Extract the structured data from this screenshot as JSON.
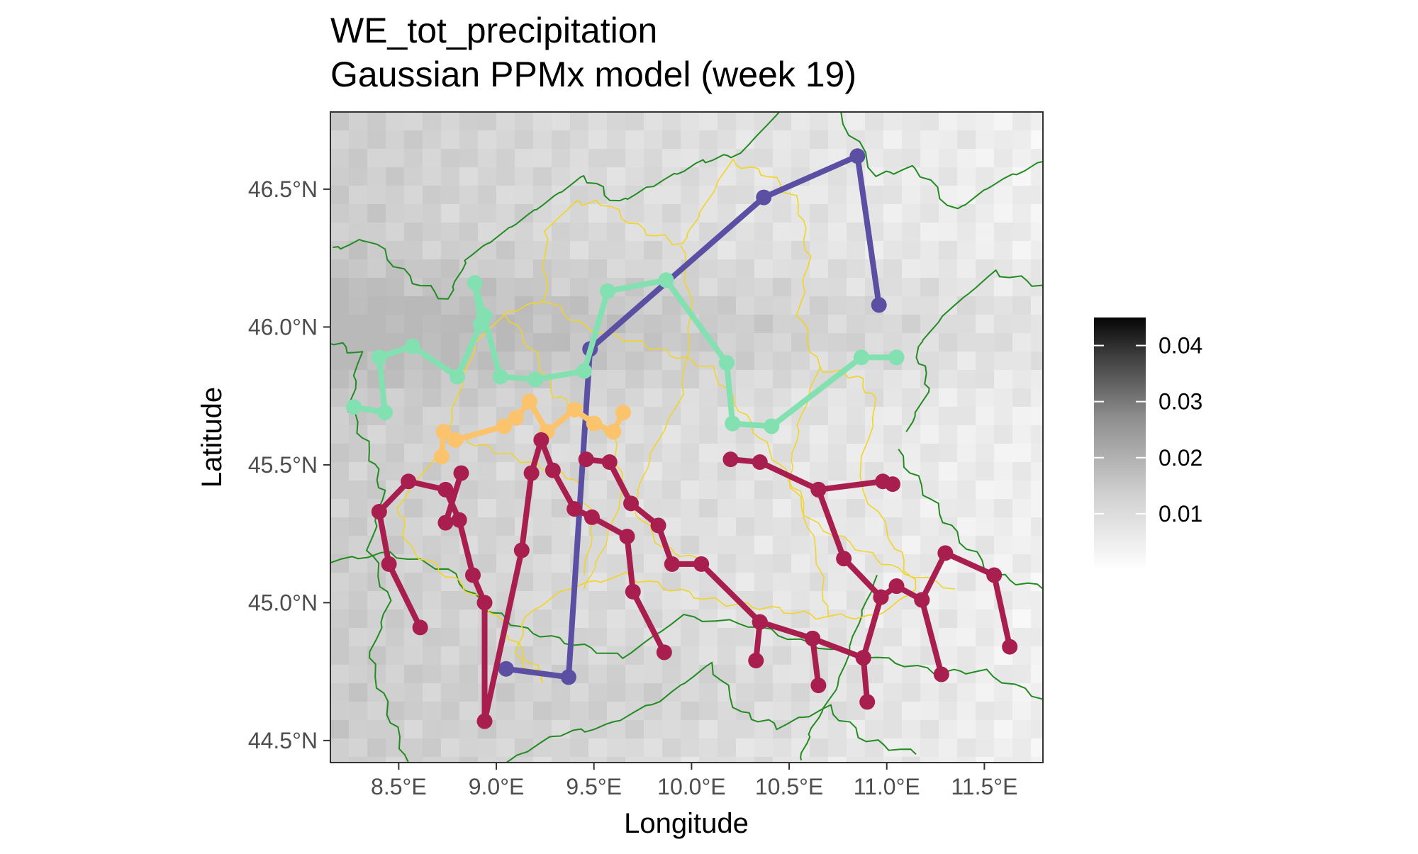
{
  "title": "WE_tot_precipitation",
  "subtitle": "Gaussian PPMx model (week 19)",
  "xlabel": "Longitude",
  "ylabel": "Latitude",
  "colors": {
    "background_gradient_low": "#ffffff",
    "background_gradient_high": "#000000",
    "border_green": "#228B22",
    "border_yellow": "#F2D422",
    "cluster_purple": "#5A4FA3",
    "cluster_mint": "#83E0B0",
    "cluster_orange": "#FBC36B",
    "cluster_crimson": "#A81E4E"
  },
  "chart_data": {
    "type": "map",
    "xlim": [
      8.15,
      11.8
    ],
    "ylim": [
      44.42,
      46.78
    ],
    "x_ticks": [
      8.5,
      9.0,
      9.5,
      10.0,
      10.5,
      11.0,
      11.5
    ],
    "x_tick_labels": [
      "8.5°E",
      "9.0°E",
      "9.5°E",
      "10.0°E",
      "10.5°E",
      "11.0°E",
      "11.5°E"
    ],
    "y_ticks": [
      44.5,
      45.0,
      45.5,
      46.0,
      46.5
    ],
    "y_tick_labels": [
      "44.5°N",
      "45.0°N",
      "45.5°N",
      "46.0°N",
      "46.5°N"
    ],
    "grid": false,
    "legend": {
      "position": "right",
      "type": "continuous",
      "range": [
        0,
        0.045
      ],
      "ticks": [
        0.01,
        0.02,
        0.03,
        0.04
      ],
      "tick_labels": [
        "0.01",
        "0.02",
        "0.03",
        "0.04"
      ]
    },
    "background_field": {
      "description": "gridded heatmap, values ~0.003-0.02",
      "darker_band_lat": [
        45.75,
        46.2
      ],
      "darker_band_lon": [
        8.15,
        11.0
      ]
    },
    "clusters": [
      {
        "color_key": "cluster_purple",
        "points": [
          [
            9.05,
            44.76
          ],
          [
            9.37,
            44.73
          ],
          [
            9.48,
            45.92
          ],
          [
            10.37,
            46.47
          ],
          [
            10.85,
            46.62
          ],
          [
            10.96,
            46.08
          ]
        ]
      },
      {
        "color_key": "cluster_mint",
        "points": [
          [
            8.27,
            45.71
          ],
          [
            8.43,
            45.69
          ],
          [
            8.4,
            45.89
          ],
          [
            8.57,
            45.93
          ],
          [
            8.8,
            45.82
          ],
          [
            8.92,
            46.01
          ],
          [
            8.89,
            46.16
          ],
          [
            9.02,
            45.82
          ],
          [
            9.2,
            45.81
          ],
          [
            9.45,
            45.84
          ],
          [
            9.57,
            46.13
          ],
          [
            9.87,
            46.17
          ],
          [
            10.18,
            45.87
          ],
          [
            10.21,
            45.65
          ],
          [
            10.41,
            45.64
          ],
          [
            10.87,
            45.89
          ],
          [
            11.05,
            45.89
          ]
        ]
      },
      {
        "color_key": "cluster_mint",
        "points": [
          [
            8.94,
            46.04
          ],
          [
            8.92,
            46.01
          ]
        ]
      },
      {
        "color_key": "cluster_orange",
        "points": [
          [
            8.72,
            45.53
          ],
          [
            8.73,
            45.62
          ],
          [
            8.79,
            45.59
          ],
          [
            9.04,
            45.64
          ],
          [
            9.1,
            45.67
          ],
          [
            9.17,
            45.73
          ],
          [
            9.26,
            45.62
          ],
          [
            9.4,
            45.7
          ],
          [
            9.5,
            45.65
          ],
          [
            9.6,
            45.62
          ],
          [
            9.65,
            45.69
          ]
        ]
      },
      {
        "color_key": "cluster_crimson",
        "points": [
          [
            8.61,
            44.91
          ],
          [
            8.45,
            45.14
          ],
          [
            8.4,
            45.33
          ],
          [
            8.55,
            45.44
          ],
          [
            8.74,
            45.41
          ],
          [
            8.81,
            45.3
          ],
          [
            8.88,
            45.1
          ],
          [
            8.94,
            45.0
          ],
          [
            8.94,
            44.57
          ],
          [
            9.13,
            45.19
          ],
          [
            9.18,
            45.47
          ],
          [
            9.23,
            45.59
          ],
          [
            9.29,
            45.48
          ],
          [
            9.4,
            45.34
          ],
          [
            9.49,
            45.31
          ],
          [
            9.67,
            45.24
          ],
          [
            9.7,
            45.04
          ],
          [
            9.86,
            44.82
          ]
        ]
      },
      {
        "color_key": "cluster_crimson",
        "points": [
          [
            8.74,
            45.29
          ],
          [
            8.82,
            45.47
          ]
        ]
      },
      {
        "color_key": "cluster_crimson",
        "points": [
          [
            9.46,
            45.52
          ],
          [
            9.58,
            45.51
          ],
          [
            9.69,
            45.36
          ],
          [
            9.83,
            45.28
          ],
          [
            9.9,
            45.14
          ],
          [
            10.05,
            45.14
          ],
          [
            10.35,
            44.93
          ],
          [
            10.62,
            44.87
          ],
          [
            10.88,
            44.8
          ],
          [
            10.97,
            45.02
          ],
          [
            11.05,
            45.06
          ],
          [
            11.18,
            45.01
          ],
          [
            11.3,
            45.18
          ],
          [
            11.55,
            45.1
          ],
          [
            11.63,
            44.84
          ]
        ]
      },
      {
        "color_key": "cluster_crimson",
        "points": [
          [
            10.2,
            45.52
          ],
          [
            10.35,
            45.51
          ],
          [
            10.65,
            45.41
          ],
          [
            10.78,
            45.16
          ],
          [
            10.97,
            45.02
          ]
        ]
      },
      {
        "color_key": "cluster_crimson",
        "points": [
          [
            10.65,
            45.41
          ],
          [
            10.98,
            45.44
          ],
          [
            11.03,
            45.43
          ]
        ]
      },
      {
        "color_key": "cluster_crimson",
        "points": [
          [
            10.35,
            44.93
          ],
          [
            10.33,
            44.79
          ]
        ]
      },
      {
        "color_key": "cluster_crimson",
        "points": [
          [
            10.62,
            44.87
          ],
          [
            10.65,
            44.7
          ]
        ]
      },
      {
        "color_key": "cluster_crimson",
        "points": [
          [
            10.88,
            44.8
          ],
          [
            10.9,
            44.64
          ]
        ]
      },
      {
        "color_key": "cluster_crimson",
        "points": [
          [
            11.18,
            45.01
          ],
          [
            11.28,
            44.74
          ]
        ]
      }
    ]
  }
}
